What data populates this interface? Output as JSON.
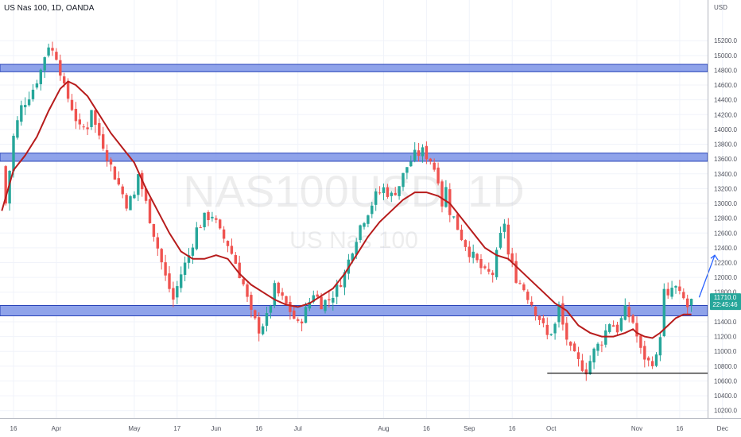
{
  "header": {
    "title": "US Nas 100, 1D, OANDA",
    "currency": "USD"
  },
  "watermark": {
    "symbol": "NAS100USD, 1D",
    "name": "US Nas 100"
  },
  "price_tag": {
    "price": "11710.0",
    "countdown": "22:45:46",
    "value": 11710
  },
  "colors": {
    "up": "#26a69a",
    "down": "#ef5350",
    "ma": "#b71c1c",
    "zone_fill": "#7b93e6",
    "zone_edge": "#2742b8",
    "arrow": "#2962ff",
    "price_tag": "#26a69a",
    "grid": "#f0f3fa",
    "axis_text": "#50535e"
  },
  "chart_data": {
    "type": "candlestick",
    "title": "US Nas 100, 1D, OANDA",
    "ylabel": "USD",
    "ylim": [
      10100,
      15750
    ],
    "y_ticks": [
      "15200.0",
      "15000.0",
      "14800.0",
      "14600.0",
      "14400.0",
      "14200.0",
      "14000.0",
      "13800.0",
      "13600.0",
      "13400.0",
      "13200.0",
      "13000.0",
      "12800.0",
      "12600.0",
      "12400.0",
      "12200.0",
      "12000.0",
      "11800.0",
      "11600.0",
      "11400.0",
      "11200.0",
      "11000.0",
      "10800.0",
      "10600.0",
      "10400.0",
      "10200.0"
    ],
    "x_ticks": [
      {
        "label": "16",
        "x": 0
      },
      {
        "label": "Apr",
        "x": 11
      },
      {
        "label": "May",
        "x": 31
      },
      {
        "label": "17",
        "x": 42
      },
      {
        "label": "Jun",
        "x": 52
      },
      {
        "label": "16",
        "x": 63
      },
      {
        "label": "Jul",
        "x": 73
      },
      {
        "label": "Aug",
        "x": 95
      },
      {
        "label": "16",
        "x": 106
      },
      {
        "label": "Sep",
        "x": 117
      },
      {
        "label": "16",
        "x": 128
      },
      {
        "label": "Oct",
        "x": 138
      },
      {
        "label": "Nov",
        "x": 160
      },
      {
        "label": "16",
        "x": 171
      },
      {
        "label": "Dec",
        "x": 182
      }
    ],
    "price_path": [
      [
        -3,
        13500
      ],
      [
        -2,
        13000
      ],
      [
        0,
        13900
      ],
      [
        2,
        14300
      ],
      [
        5,
        14550
      ],
      [
        7,
        14800
      ],
      [
        8,
        15000
      ],
      [
        9,
        15150
      ],
      [
        10,
        15050
      ],
      [
        11,
        15000
      ],
      [
        12,
        14800
      ],
      [
        13,
        14550
      ],
      [
        15,
        14300
      ],
      [
        17,
        14000
      ],
      [
        19,
        14050
      ],
      [
        20,
        14300
      ],
      [
        21,
        14050
      ],
      [
        23,
        13800
      ],
      [
        25,
        13500
      ],
      [
        27,
        13250
      ],
      [
        29,
        13000
      ],
      [
        31,
        13100
      ],
      [
        32,
        13400
      ],
      [
        33,
        13200
      ],
      [
        35,
        12800
      ],
      [
        37,
        12400
      ],
      [
        39,
        12000
      ],
      [
        41,
        11700
      ],
      [
        43,
        12050
      ],
      [
        45,
        12300
      ],
      [
        47,
        12650
      ],
      [
        49,
        12800
      ],
      [
        51,
        12850
      ],
      [
        53,
        12600
      ],
      [
        55,
        12450
      ],
      [
        57,
        12200
      ],
      [
        59,
        11900
      ],
      [
        61,
        11500
      ],
      [
        63,
        11300
      ],
      [
        65,
        11450
      ],
      [
        67,
        11850
      ],
      [
        69,
        11700
      ],
      [
        71,
        11550
      ],
      [
        73,
        11350
      ],
      [
        75,
        11550
      ],
      [
        77,
        11800
      ],
      [
        79,
        11650
      ],
      [
        81,
        11700
      ],
      [
        83,
        11850
      ],
      [
        85,
        12050
      ],
      [
        87,
        12400
      ],
      [
        89,
        12700
      ],
      [
        91,
        12900
      ],
      [
        93,
        13100
      ],
      [
        95,
        13200
      ],
      [
        97,
        13100
      ],
      [
        99,
        13250
      ],
      [
        101,
        13500
      ],
      [
        103,
        13650
      ],
      [
        105,
        13700
      ],
      [
        107,
        13600
      ],
      [
        109,
        13350
      ],
      [
        110,
        13000
      ],
      [
        111,
        13200
      ],
      [
        112,
        12900
      ],
      [
        113,
        12800
      ],
      [
        115,
        12550
      ],
      [
        117,
        12350
      ],
      [
        119,
        12200
      ],
      [
        121,
        12050
      ],
      [
        123,
        12050
      ],
      [
        124,
        12300
      ],
      [
        125,
        12550
      ],
      [
        126,
        12750
      ],
      [
        127,
        12300
      ],
      [
        129,
        12000
      ],
      [
        131,
        11850
      ],
      [
        133,
        11650
      ],
      [
        135,
        11450
      ],
      [
        137,
        11200
      ],
      [
        139,
        11350
      ],
      [
        140,
        11600
      ],
      [
        141,
        11350
      ],
      [
        143,
        11000
      ],
      [
        145,
        10850
      ],
      [
        147,
        10750
      ],
      [
        149,
        11000
      ],
      [
        151,
        11150
      ],
      [
        153,
        11400
      ],
      [
        155,
        11300
      ],
      [
        157,
        11550
      ],
      [
        159,
        11400
      ],
      [
        161,
        11000
      ],
      [
        163,
        10850
      ],
      [
        165,
        10900
      ],
      [
        166,
        11250
      ],
      [
        167,
        11800
      ],
      [
        168,
        11700
      ],
      [
        169,
        11850
      ],
      [
        170,
        11850
      ],
      [
        171,
        11750
      ],
      [
        172,
        11700
      ],
      [
        173,
        11600
      ],
      [
        174,
        11710
      ]
    ],
    "moving_average": [
      [
        -3,
        12900
      ],
      [
        0,
        13450
      ],
      [
        3,
        13650
      ],
      [
        6,
        13900
      ],
      [
        9,
        14250
      ],
      [
        12,
        14550
      ],
      [
        14,
        14650
      ],
      [
        16,
        14600
      ],
      [
        19,
        14450
      ],
      [
        22,
        14200
      ],
      [
        25,
        13950
      ],
      [
        28,
        13750
      ],
      [
        31,
        13550
      ],
      [
        34,
        13200
      ],
      [
        37,
        12900
      ],
      [
        40,
        12600
      ],
      [
        43,
        12350
      ],
      [
        46,
        12250
      ],
      [
        49,
        12250
      ],
      [
        52,
        12300
      ],
      [
        55,
        12250
      ],
      [
        58,
        12050
      ],
      [
        61,
        11900
      ],
      [
        64,
        11800
      ],
      [
        67,
        11700
      ],
      [
        70,
        11630
      ],
      [
        73,
        11600
      ],
      [
        76,
        11650
      ],
      [
        79,
        11750
      ],
      [
        82,
        11850
      ],
      [
        85,
        12050
      ],
      [
        88,
        12300
      ],
      [
        91,
        12550
      ],
      [
        94,
        12750
      ],
      [
        97,
        12900
      ],
      [
        100,
        13050
      ],
      [
        103,
        13150
      ],
      [
        106,
        13150
      ],
      [
        109,
        13100
      ],
      [
        112,
        13000
      ],
      [
        115,
        12800
      ],
      [
        118,
        12600
      ],
      [
        121,
        12400
      ],
      [
        124,
        12300
      ],
      [
        127,
        12250
      ],
      [
        130,
        12100
      ],
      [
        133,
        11950
      ],
      [
        136,
        11800
      ],
      [
        139,
        11650
      ],
      [
        142,
        11550
      ],
      [
        145,
        11350
      ],
      [
        148,
        11250
      ],
      [
        151,
        11200
      ],
      [
        154,
        11200
      ],
      [
        157,
        11250
      ],
      [
        159,
        11300
      ],
      [
        160,
        11250
      ],
      [
        162,
        11200
      ],
      [
        164,
        11180
      ],
      [
        166,
        11250
      ],
      [
        168,
        11350
      ],
      [
        170,
        11450
      ],
      [
        172,
        11500
      ],
      [
        174,
        11500
      ]
    ],
    "resistance_zones": [
      [
        14780,
        14880
      ],
      [
        13570,
        13680
      ],
      [
        11480,
        11620
      ]
    ],
    "support_line": {
      "value": 10705,
      "x_from": 137,
      "x_to": 185
    },
    "projection_arrow": {
      "from": [
        176,
        11730
      ],
      "to": [
        180,
        12300
      ]
    },
    "grid": true
  }
}
